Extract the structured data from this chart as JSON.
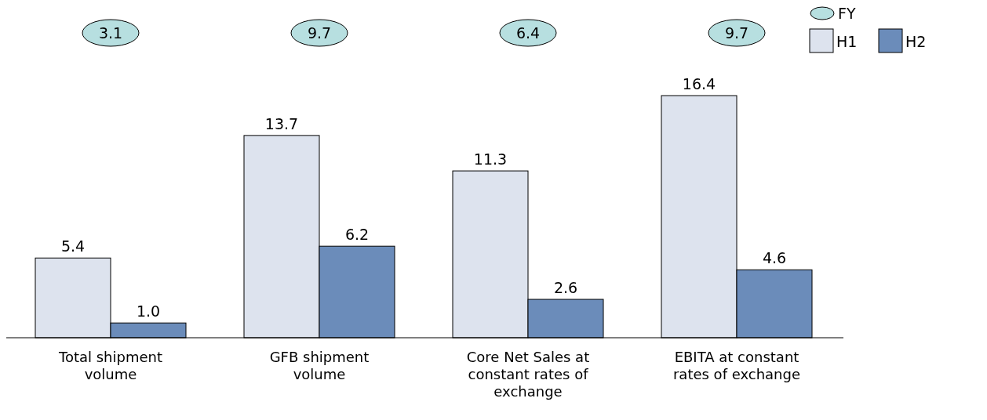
{
  "chart_data": {
    "type": "bar",
    "categories": [
      "Total shipment volume",
      "GFB shipment volume",
      "Core Net Sales at constant rates of exchange",
      "EBITA at constant rates of exchange"
    ],
    "series": [
      {
        "name": "H1",
        "color": "#dde3ee",
        "values": [
          5.4,
          13.7,
          11.3,
          16.4
        ],
        "value_labels": [
          "5.4",
          "13.7",
          "11.3",
          "16.4"
        ]
      },
      {
        "name": "H2",
        "color": "#6b8cba",
        "values": [
          1.0,
          6.2,
          2.6,
          4.6
        ],
        "value_labels": [
          "1.0",
          "6.2",
          "2.6",
          "4.6"
        ]
      }
    ],
    "annotations": [
      "3.1",
      "9.7",
      "6.4",
      "9.7",
      "FY"
    ],
    "legend": "top right"
  }
}
